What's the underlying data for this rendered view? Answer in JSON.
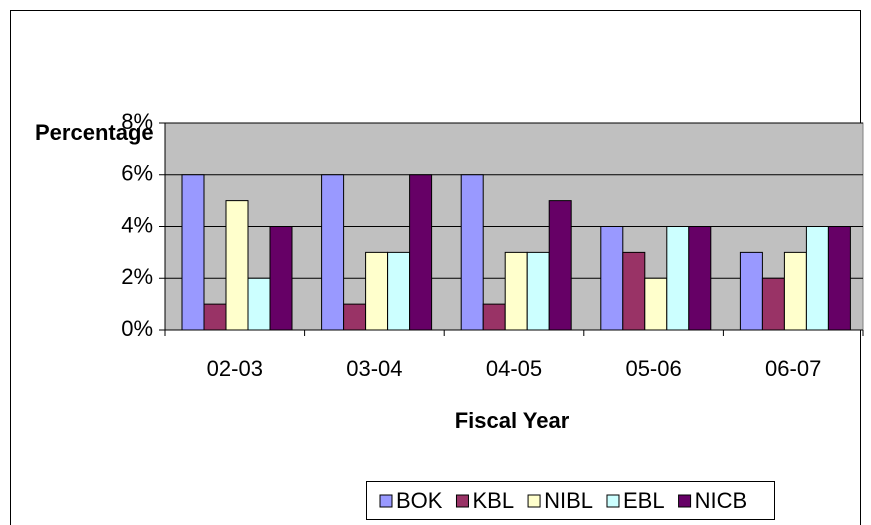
{
  "chart_data": {
    "type": "bar",
    "y_label": "Percentage",
    "x_label": "Fiscal Year",
    "categories": [
      "02-03",
      "03-04",
      "04-05",
      "05-06",
      "06-07"
    ],
    "series": [
      {
        "name": "BOK",
        "color": "#9999ff",
        "values": [
          6,
          6,
          6,
          4,
          3
        ]
      },
      {
        "name": "KBL",
        "color": "#993366",
        "values": [
          1,
          1,
          1,
          3,
          2
        ]
      },
      {
        "name": "NIBL",
        "color": "#ffffcc",
        "values": [
          5,
          3,
          3,
          2,
          3
        ]
      },
      {
        "name": "EBL",
        "color": "#ccffff",
        "values": [
          2,
          3,
          3,
          4,
          4
        ]
      },
      {
        "name": "NICB",
        "color": "#660066",
        "values": [
          4,
          6,
          5,
          4,
          4
        ]
      }
    ],
    "ylim": [
      0,
      8
    ],
    "yticks": [
      {
        "value": 0,
        "label": "0%"
      },
      {
        "value": 2,
        "label": "2%"
      },
      {
        "value": 4,
        "label": "4%"
      },
      {
        "value": 6,
        "label": "6%"
      },
      {
        "value": 8,
        "label": "8%"
      }
    ],
    "grid": true,
    "plot_background": "#c0c0c0",
    "legend": "bottom"
  }
}
